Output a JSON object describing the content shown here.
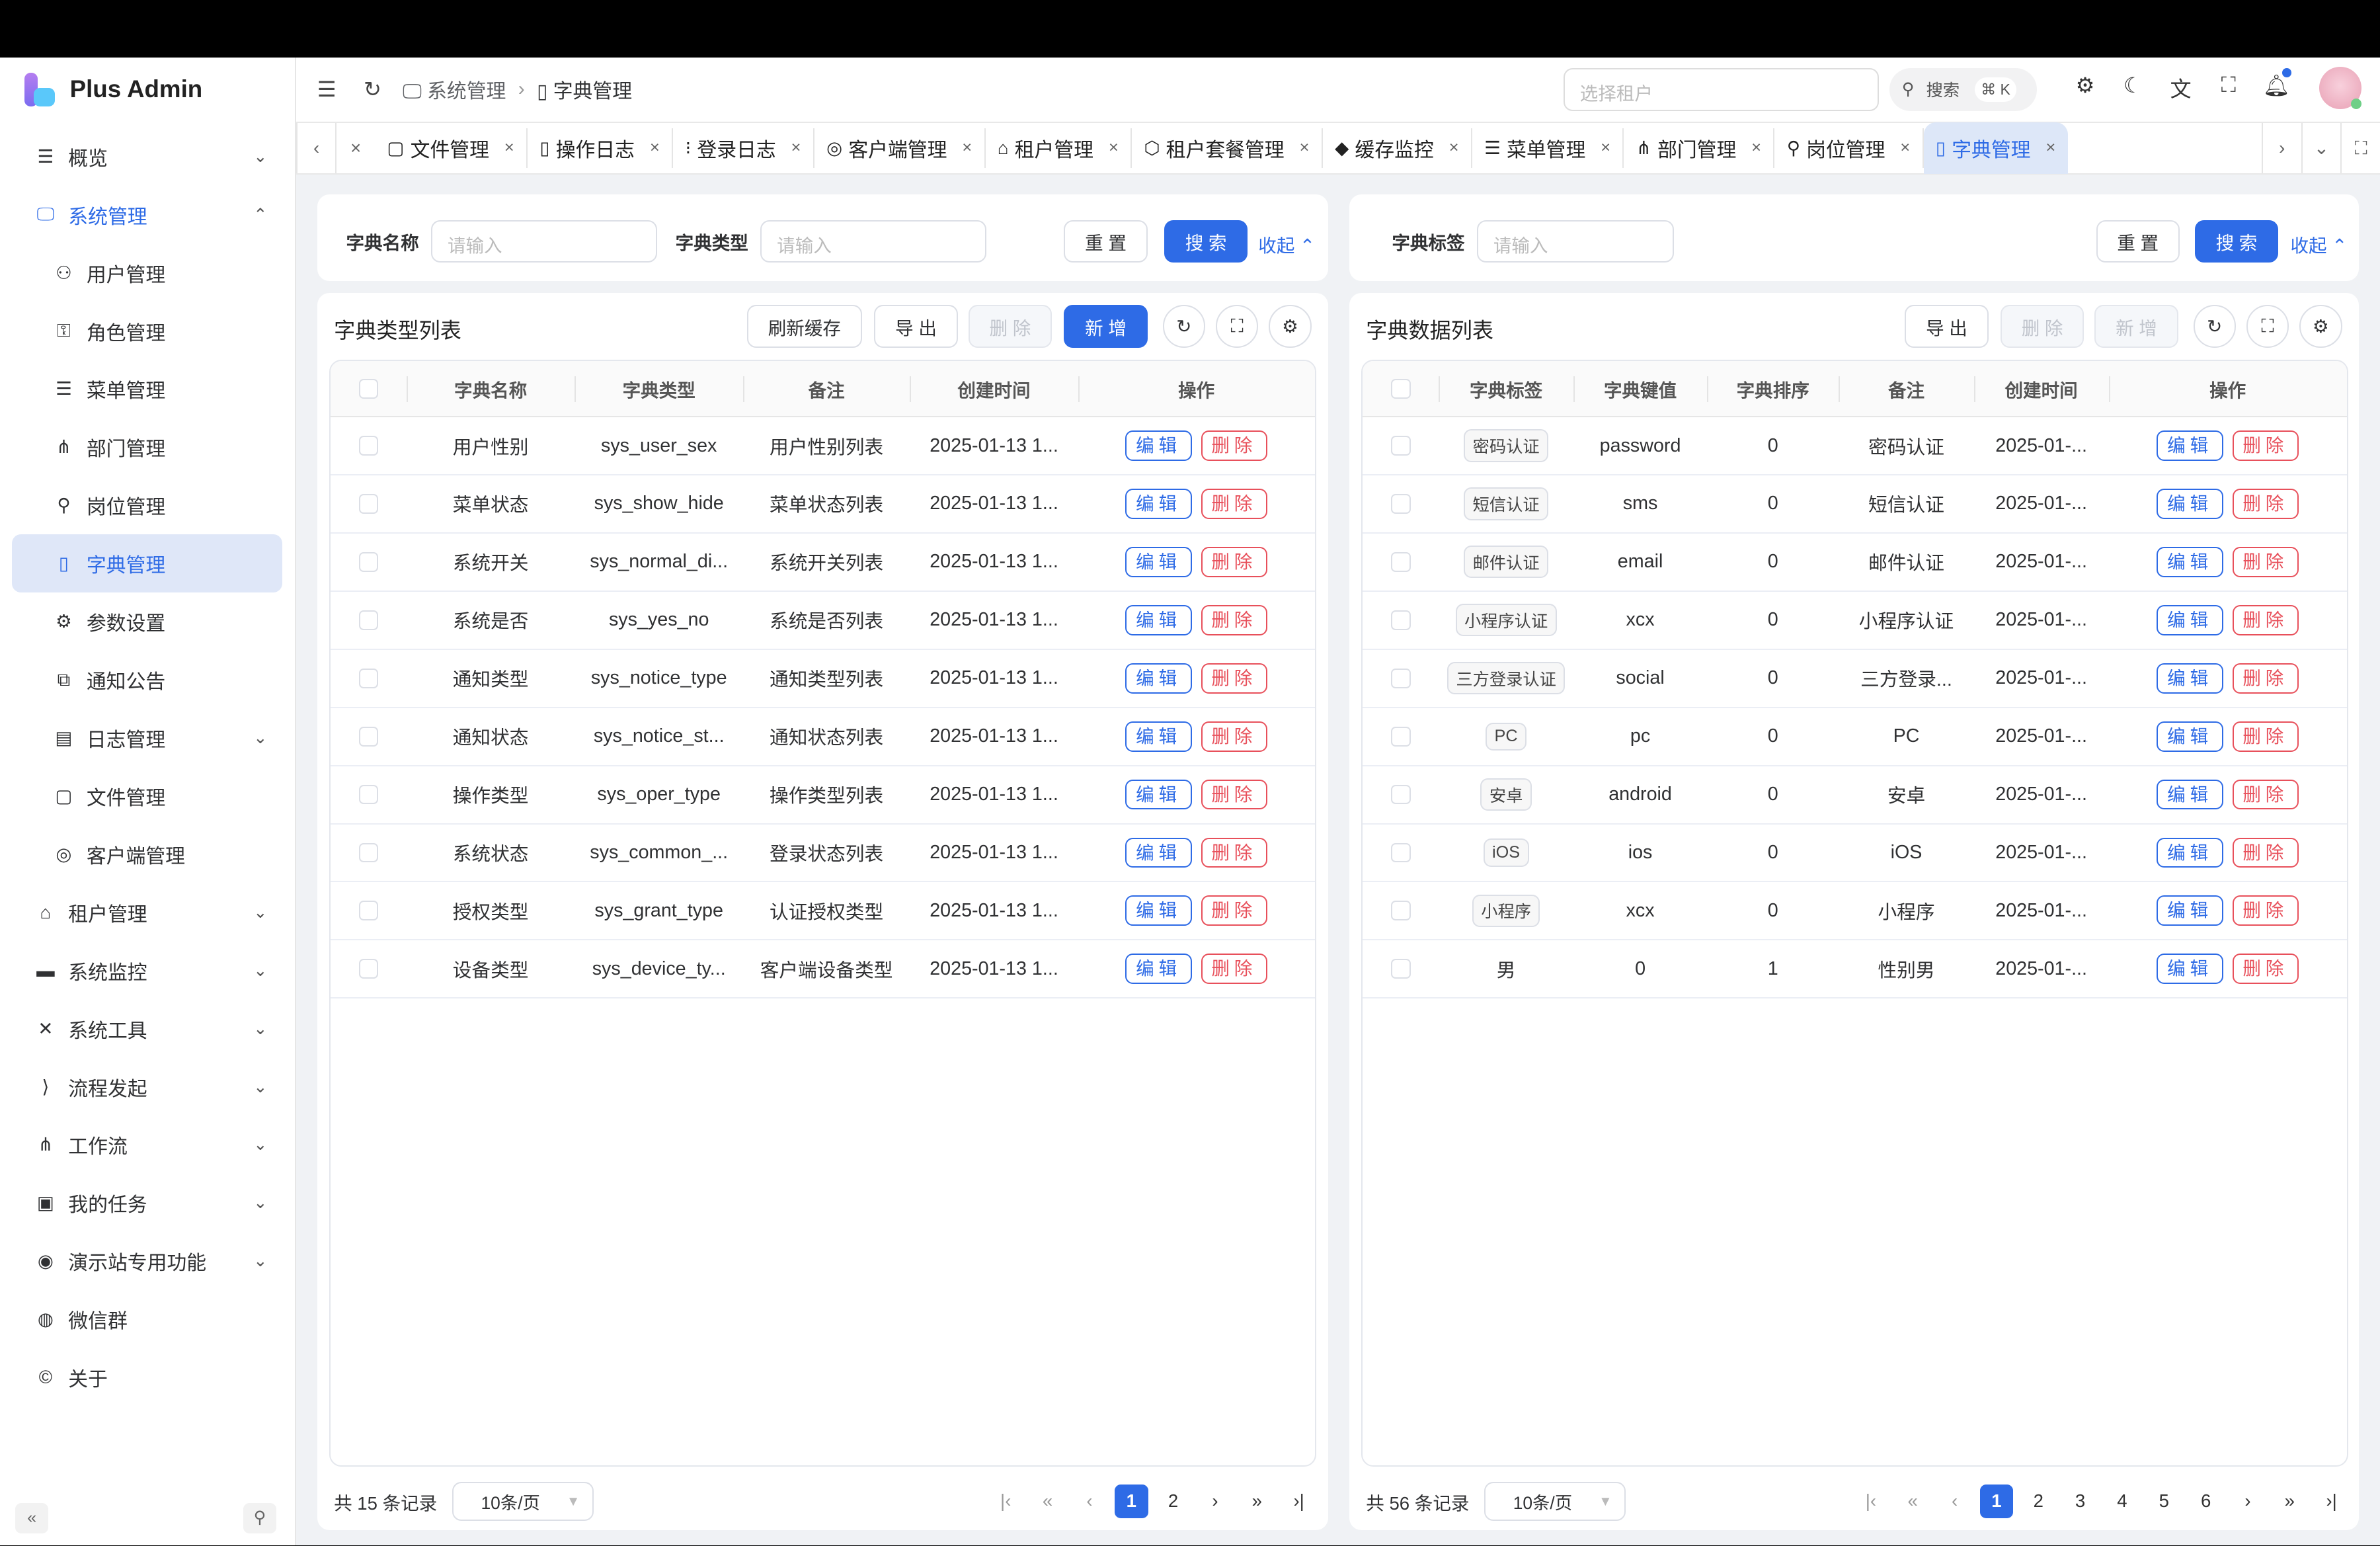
{
  "app": {
    "title": "Plus Admin"
  },
  "sidebar": {
    "items": [
      {
        "label": "概览",
        "icon": "list-icon",
        "glyph": "☰",
        "chev": "⌄"
      },
      {
        "label": "系统管理",
        "icon": "monitor-icon",
        "glyph": "🖵",
        "chev": "⌃",
        "state": "open"
      },
      {
        "label": "用户管理",
        "icon": "user-icon",
        "glyph": "⚇",
        "sub": true
      },
      {
        "label": "角色管理",
        "icon": "role-icon",
        "glyph": "⚿",
        "sub": true
      },
      {
        "label": "菜单管理",
        "icon": "menu-icon",
        "glyph": "☰",
        "sub": true
      },
      {
        "label": "部门管理",
        "icon": "org-icon",
        "glyph": "⋔",
        "sub": true
      },
      {
        "label": "岗位管理",
        "icon": "post-icon",
        "glyph": "⚲",
        "sub": true
      },
      {
        "label": "字典管理",
        "icon": "book-icon",
        "glyph": "▯",
        "sub": true,
        "state": "active"
      },
      {
        "label": "参数设置",
        "icon": "gear-icon",
        "glyph": "⚙",
        "sub": true
      },
      {
        "label": "通知公告",
        "icon": "notice-icon",
        "glyph": "⧉",
        "sub": true
      },
      {
        "label": "日志管理",
        "icon": "log-icon",
        "glyph": "▤",
        "sub": true,
        "chev": "⌄"
      },
      {
        "label": "文件管理",
        "icon": "file-icon",
        "glyph": "▢",
        "sub": true
      },
      {
        "label": "客户端管理",
        "icon": "client-icon",
        "glyph": "◎",
        "sub": true
      },
      {
        "label": "租户管理",
        "icon": "home-icon",
        "glyph": "⌂",
        "chev": "⌄"
      },
      {
        "label": "系统监控",
        "icon": "monitor-icon",
        "glyph": "▬",
        "chev": "⌄"
      },
      {
        "label": "系统工具",
        "icon": "tools-icon",
        "glyph": "✕",
        "chev": "⌄"
      },
      {
        "label": "流程发起",
        "icon": "vscode-icon",
        "glyph": "⟩",
        "chev": "⌄"
      },
      {
        "label": "工作流",
        "icon": "workflow-icon",
        "glyph": "⋔",
        "chev": "⌄"
      },
      {
        "label": "我的任务",
        "icon": "task-icon",
        "glyph": "▣",
        "chev": "⌄"
      },
      {
        "label": "演示站专用功能",
        "icon": "globe-icon",
        "glyph": "◉",
        "chev": "⌄"
      },
      {
        "label": "微信群",
        "icon": "wechat-icon",
        "glyph": "◍"
      },
      {
        "label": "关于",
        "icon": "copyright-icon",
        "glyph": "©"
      }
    ]
  },
  "header": {
    "breadcrumb": [
      "系统管理",
      "字典管理"
    ],
    "tenant_placeholder": "选择租户",
    "search_label": "搜索",
    "search_shortcut": "⌘ K"
  },
  "tabs": [
    {
      "label": "文件管理",
      "icon": "file-icon",
      "glyph": "▢"
    },
    {
      "label": "操作日志",
      "icon": "log-icon",
      "glyph": "▯"
    },
    {
      "label": "登录日志",
      "icon": "login-log-icon",
      "glyph": "⁝"
    },
    {
      "label": "客户端管理",
      "icon": "client-icon",
      "glyph": "◎"
    },
    {
      "label": "租户管理",
      "icon": "home-icon",
      "glyph": "⌂"
    },
    {
      "label": "租户套餐管理",
      "icon": "package-icon",
      "glyph": "⬡"
    },
    {
      "label": "缓存监控",
      "icon": "redis-icon",
      "glyph": "◆"
    },
    {
      "label": "菜单管理",
      "icon": "menu-icon",
      "glyph": "☰"
    },
    {
      "label": "部门管理",
      "icon": "org-icon",
      "glyph": "⋔"
    },
    {
      "label": "岗位管理",
      "icon": "post-icon",
      "glyph": "⚲"
    },
    {
      "label": "字典管理",
      "icon": "book-icon",
      "glyph": "▯",
      "active": true
    }
  ],
  "left": {
    "search": {
      "name_label": "字典名称",
      "name_placeholder": "请输入",
      "type_label": "字典类型",
      "type_placeholder": "请输入",
      "reset": "重 置",
      "search": "搜 索",
      "collapse": "收起 ⌃"
    },
    "title": "字典类型列表",
    "toolbar": {
      "refresh_cache": "刷新缓存",
      "export": "导 出",
      "delete": "删 除",
      "add": "新 增"
    },
    "columns": [
      "字典名称",
      "字典类型",
      "备注",
      "创建时间",
      "操作"
    ],
    "rows": [
      [
        "用户性别",
        "sys_user_sex",
        "用户性别列表",
        "2025-01-13 1..."
      ],
      [
        "菜单状态",
        "sys_show_hide",
        "菜单状态列表",
        "2025-01-13 1..."
      ],
      [
        "系统开关",
        "sys_normal_di...",
        "系统开关列表",
        "2025-01-13 1..."
      ],
      [
        "系统是否",
        "sys_yes_no",
        "系统是否列表",
        "2025-01-13 1..."
      ],
      [
        "通知类型",
        "sys_notice_type",
        "通知类型列表",
        "2025-01-13 1..."
      ],
      [
        "通知状态",
        "sys_notice_st...",
        "通知状态列表",
        "2025-01-13 1..."
      ],
      [
        "操作类型",
        "sys_oper_type",
        "操作类型列表",
        "2025-01-13 1..."
      ],
      [
        "系统状态",
        "sys_common_...",
        "登录状态列表",
        "2025-01-13 1..."
      ],
      [
        "授权类型",
        "sys_grant_type",
        "认证授权类型",
        "2025-01-13 1..."
      ],
      [
        "设备类型",
        "sys_device_ty...",
        "客户端设备类型",
        "2025-01-13 1..."
      ]
    ],
    "edit": "编辑",
    "del": "删除",
    "pagination": {
      "total": "共 15 条记录",
      "page_size": "10条/页",
      "pages": [
        "1",
        "2"
      ],
      "current": "1"
    }
  },
  "right": {
    "search": {
      "label_label": "字典标签",
      "label_placeholder": "请输入",
      "reset": "重 置",
      "search": "搜 索",
      "collapse": "收起 ⌃"
    },
    "title": "字典数据列表",
    "toolbar": {
      "export": "导 出",
      "delete": "删 除",
      "add": "新 增"
    },
    "columns": [
      "字典标签",
      "字典键值",
      "字典排序",
      "备注",
      "创建时间",
      "操作"
    ],
    "rows": [
      {
        "label": "密码认证",
        "tag": true,
        "value": "password",
        "sort": "0",
        "remark": "密码认证",
        "time": "2025-01-..."
      },
      {
        "label": "短信认证",
        "tag": true,
        "value": "sms",
        "sort": "0",
        "remark": "短信认证",
        "time": "2025-01-..."
      },
      {
        "label": "邮件认证",
        "tag": true,
        "value": "email",
        "sort": "0",
        "remark": "邮件认证",
        "time": "2025-01-..."
      },
      {
        "label": "小程序认证",
        "tag": true,
        "value": "xcx",
        "sort": "0",
        "remark": "小程序认证",
        "time": "2025-01-..."
      },
      {
        "label": "三方登录认证",
        "tag": true,
        "value": "social",
        "sort": "0",
        "remark": "三方登录...",
        "time": "2025-01-..."
      },
      {
        "label": "PC",
        "tag": true,
        "value": "pc",
        "sort": "0",
        "remark": "PC",
        "time": "2025-01-..."
      },
      {
        "label": "安卓",
        "tag": true,
        "value": "android",
        "sort": "0",
        "remark": "安卓",
        "time": "2025-01-..."
      },
      {
        "label": "iOS",
        "tag": true,
        "value": "ios",
        "sort": "0",
        "remark": "iOS",
        "time": "2025-01-..."
      },
      {
        "label": "小程序",
        "tag": true,
        "value": "xcx",
        "sort": "0",
        "remark": "小程序",
        "time": "2025-01-..."
      },
      {
        "label": "男",
        "tag": false,
        "value": "0",
        "sort": "1",
        "remark": "性别男",
        "time": "2025-01-..."
      }
    ],
    "edit": "编辑",
    "del": "删除",
    "pagination": {
      "total": "共 56 条记录",
      "page_size": "10条/页",
      "pages": [
        "1",
        "2",
        "3",
        "4",
        "5",
        "6"
      ],
      "current": "1"
    }
  },
  "colors": {
    "primary": "#2e6be6",
    "danger": "#e8505b",
    "active_bg": "#dfe7f8"
  }
}
